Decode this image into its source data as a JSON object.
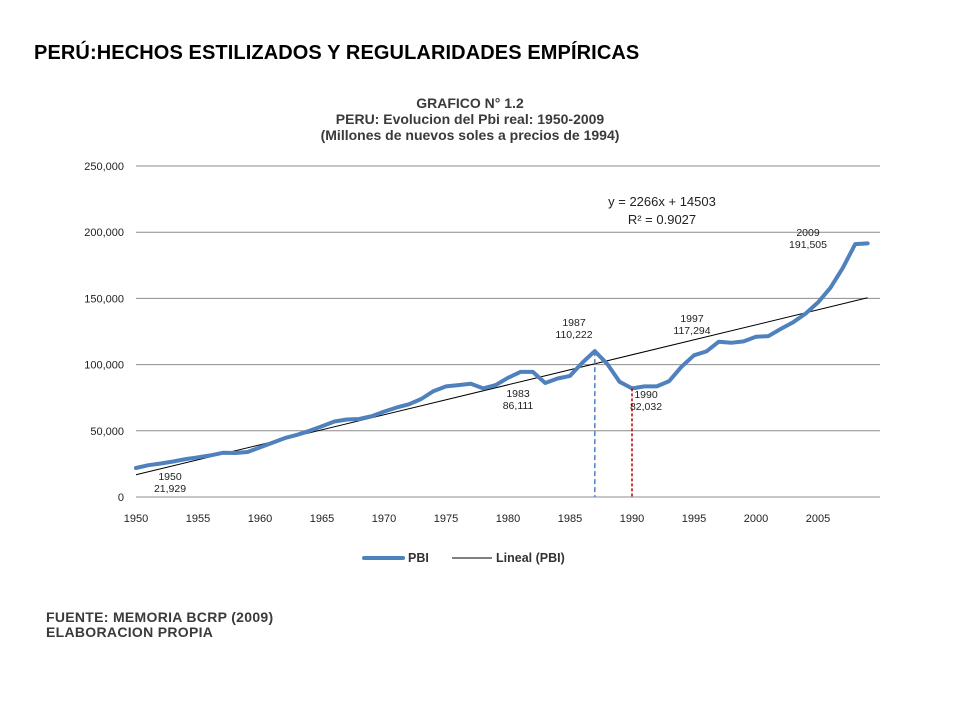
{
  "page": {
    "title": "PERÚ:HECHOS ESTILIZADOS Y REGULARIDADES EMPÍRICAS"
  },
  "chart_data": {
    "type": "line",
    "title_lines": [
      "GRAFICO N° 1.2",
      "PERU: Evolucion del Pbi real: 1950-2009",
      "(Millones de nuevos soles a precios de 1994)"
    ],
    "xlabel": "",
    "ylabel": "",
    "xlim": [
      1950,
      2010
    ],
    "ylim": [
      0,
      250000
    ],
    "x_ticks": [
      1950,
      1955,
      1960,
      1965,
      1970,
      1975,
      1980,
      1985,
      1990,
      1995,
      2000,
      2005
    ],
    "y_ticks": [
      0,
      50000,
      100000,
      150000,
      200000,
      250000
    ],
    "y_tick_labels": [
      "0",
      "50,000",
      "100,000",
      "150,000",
      "200,000",
      "250,000"
    ],
    "grid": "horizontal",
    "legend_position": "bottom",
    "colors": {
      "pbi": "#4F81BD",
      "trend": "#000000",
      "marker_1987": "#4F81BD",
      "marker_1990": "#C00000"
    },
    "x": [
      1950,
      1951,
      1952,
      1953,
      1954,
      1955,
      1956,
      1957,
      1958,
      1959,
      1960,
      1961,
      1962,
      1963,
      1964,
      1965,
      1966,
      1967,
      1968,
      1969,
      1970,
      1971,
      1972,
      1973,
      1974,
      1975,
      1976,
      1977,
      1978,
      1979,
      1980,
      1981,
      1982,
      1983,
      1984,
      1985,
      1986,
      1987,
      1988,
      1989,
      1990,
      1991,
      1992,
      1993,
      1994,
      1995,
      1996,
      1997,
      1998,
      1999,
      2000,
      2001,
      2002,
      2003,
      2004,
      2005,
      2006,
      2007,
      2008,
      2009
    ],
    "series": [
      {
        "name": "PBI",
        "values": [
          21929,
          24000,
          25300,
          26800,
          28600,
          30000,
          31400,
          33400,
          33200,
          34000,
          37500,
          41000,
          44500,
          47000,
          50000,
          53500,
          57000,
          58500,
          58900,
          61000,
          64500,
          67500,
          70000,
          74000,
          80000,
          83500,
          84500,
          85500,
          82000,
          84500,
          90000,
          94500,
          94500,
          86111,
          89500,
          91500,
          101500,
          110222,
          100500,
          87000,
          82032,
          83500,
          83500,
          87500,
          98500,
          107000,
          110000,
          117294,
          116500,
          117500,
          121000,
          121500,
          127000,
          132000,
          138500,
          147000,
          158000,
          173000,
          191000,
          191505
        ]
      },
      {
        "name": "Lineal (PBI)",
        "equation": "y = 2266x + 14503",
        "slope": 2266,
        "intercept": 14503
      }
    ],
    "annotations": [
      {
        "year": 1950,
        "label": "1950",
        "value_label": "21,929"
      },
      {
        "year": 1983,
        "label": "1983",
        "value_label": "86,111"
      },
      {
        "year": 1987,
        "label": "1987",
        "value_label": "110,222"
      },
      {
        "year": 1990,
        "label": "1990",
        "value_label": "82,032"
      },
      {
        "year": 1997,
        "label": "1997",
        "value_label": "117,294"
      },
      {
        "year": 2009,
        "label": "2009",
        "value_label": "191,505"
      }
    ],
    "equation_text": "y = 2266x + 14503",
    "r2_text": "R² = 0.9027",
    "legend": [
      "PBI",
      "Lineal (PBI)"
    ]
  },
  "source": {
    "line1": "FUENTE: MEMORIA BCRP (2009)",
    "line2": "ELABORACION PROPIA"
  }
}
